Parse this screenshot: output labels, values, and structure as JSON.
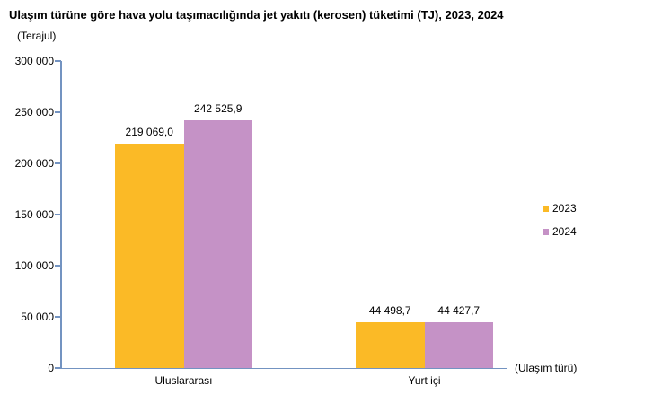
{
  "title": "Ulaşım türüne göre hava yolu taşımacılığında jet yakıtı (kerosen) tüketimi (TJ), 2023, 2024",
  "unit_label": "(Terajul)",
  "x_axis_title": "(Ulaşım türü)",
  "colors": {
    "series_2023": "#FBBA26",
    "series_2024": "#C592C6",
    "axis_line": "#7393C1",
    "text": "#000000",
    "background": "#FFFFFF"
  },
  "y_axis": {
    "ticks": [
      "300 000",
      "250 000",
      "200 000",
      "150 000",
      "100 000",
      "50 000",
      "0"
    ],
    "min": 0,
    "max": 300000
  },
  "legend": [
    {
      "label": "2023",
      "color": "#FBBA26"
    },
    {
      "label": "2024",
      "color": "#C592C6"
    }
  ],
  "chart_data": {
    "type": "bar",
    "title": "Ulaşım türüne göre hava yolu taşımacılığında jet yakıtı (kerosen) tüketimi (TJ), 2023, 2024",
    "categories": [
      "Uluslararası",
      "Yurt içi"
    ],
    "series": [
      {
        "name": "2023",
        "color": "#FBBA26",
        "values": [
          219069.0,
          44498.7
        ],
        "value_labels": [
          "219 069,0",
          "44 498,7"
        ]
      },
      {
        "name": "2024",
        "color": "#C592C6",
        "values": [
          242525.9,
          44427.7
        ],
        "value_labels": [
          "242 525,9",
          "44 427,7"
        ]
      }
    ],
    "xlabel": "(Ulaşım türü)",
    "ylabel": "(Terajul)",
    "ylim": [
      0,
      300000
    ],
    "grid": false,
    "legend_position": "right"
  }
}
